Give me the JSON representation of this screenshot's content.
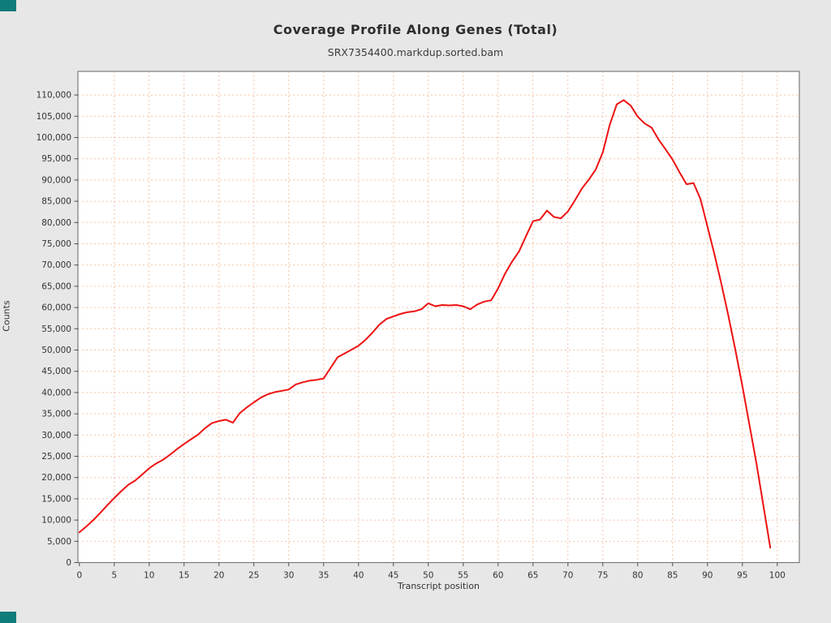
{
  "page": {
    "background_color": "#e7e7e7",
    "corner_accent_color": "#0e7c7b"
  },
  "chart_data": {
    "type": "line",
    "title": "Coverage Profile Along Genes (Total)",
    "subtitle": "SRX7354400.markdup.sorted.bam",
    "xlabel": "Transcript position",
    "ylabel": "Counts",
    "xlim": [
      -0.5,
      103.3
    ],
    "ylim": [
      0,
      115500
    ],
    "grid": true,
    "legend": "none",
    "x_ticks": [
      0,
      5,
      10,
      15,
      20,
      25,
      30,
      35,
      40,
      45,
      50,
      55,
      60,
      65,
      70,
      75,
      80,
      85,
      90,
      95,
      100
    ],
    "x_tick_labels": [
      "0",
      "5",
      "10",
      "15",
      "20",
      "25",
      "30",
      "35",
      "40",
      "45",
      "50",
      "55",
      "60",
      "65",
      "70",
      "75",
      "80",
      "85",
      "90",
      "95",
      "100"
    ],
    "y_ticks": [
      0,
      5000,
      10000,
      15000,
      20000,
      25000,
      30000,
      35000,
      40000,
      45000,
      50000,
      55000,
      60000,
      65000,
      70000,
      75000,
      80000,
      85000,
      90000,
      95000,
      100000,
      105000,
      110000
    ],
    "y_tick_labels": [
      "0",
      "5,000",
      "10,000",
      "15,000",
      "20,000",
      "25,000",
      "30,000",
      "35,000",
      "40,000",
      "45,000",
      "50,000",
      "55,000",
      "60,000",
      "65,000",
      "70,000",
      "75,000",
      "80,000",
      "85,000",
      "90,000",
      "95,000",
      "100,000",
      "105,000",
      "110,000"
    ],
    "series": [
      {
        "name": "SRX7354400.markdup.sorted.bam",
        "color": "#ee1111",
        "x_start": 0,
        "x_step": 1,
        "values": [
          7100,
          8500,
          10000,
          11700,
          13500,
          15200,
          16800,
          18300,
          19300,
          20700,
          22200,
          23300,
          24200,
          25400,
          26700,
          27900,
          29000,
          30100,
          31600,
          32800,
          33300,
          33600,
          32900,
          35200,
          36500,
          37700,
          38800,
          39600,
          40100,
          40400,
          40700,
          41900,
          42400,
          42800,
          43000,
          43300,
          45800,
          48300,
          49200,
          50100,
          51000,
          52400,
          54100,
          56000,
          57300,
          57900,
          58500,
          58900,
          59100,
          59600,
          61000,
          60300,
          60600,
          60500,
          60600,
          60300,
          59600,
          60700,
          61400,
          61700,
          64500,
          68000,
          70800,
          73200,
          76800,
          80300,
          80700,
          82800,
          81300,
          81000,
          82600,
          85200,
          88000,
          90100,
          92500,
          96500,
          103000,
          107800,
          108800,
          107500,
          104900,
          103300,
          102300,
          99500,
          97200,
          94800,
          91800,
          89000,
          89300,
          85500,
          79000,
          72500,
          65500,
          58000,
          50000,
          41500,
          32500,
          23500,
          13500,
          3500
        ]
      }
    ],
    "style": {
      "plot_background": "#ffffff",
      "grid_color": "#f3c3a6",
      "plot_border_color": "#7a7a7a",
      "axis_tick_color": "#4d4d4d",
      "tick_label_color": "#333333"
    }
  }
}
